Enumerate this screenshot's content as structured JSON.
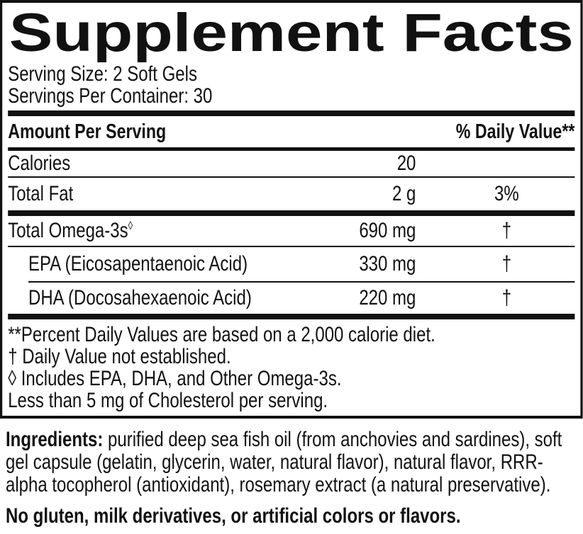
{
  "colors": {
    "ink": "#111111",
    "background": "#ffffff"
  },
  "label": {
    "title": "Supplement Facts",
    "serving_size": "Serving Size: 2 Soft Gels",
    "servings_per_container": "Servings Per Container: 30",
    "header": {
      "amount_per_serving": "Amount Per Serving",
      "daily_value": "% Daily Value**"
    },
    "rows": [
      {
        "name": "Calories",
        "amount": "20",
        "dv": ""
      },
      {
        "name": "Total Fat",
        "amount": "2 g",
        "dv": "3%"
      },
      {
        "name": "Total Omega-3s",
        "mark": "◊",
        "amount": "690 mg",
        "dv": "†"
      },
      {
        "name": "EPA (Eicosapentaenoic Acid)",
        "amount": "330 mg",
        "dv": "†"
      },
      {
        "name": "DHA (Docosahexaenoic Acid)",
        "amount": "220 mg",
        "dv": "†"
      }
    ],
    "footnotes": [
      "**Percent Daily Values are based on a 2,000 calorie diet.",
      "† Daily Value not established.",
      "◊ Includes EPA, DHA, and Other Omega-3s.",
      "Less than 5 mg of Cholesterol per serving."
    ]
  },
  "below": {
    "ingredients_label": "Ingredients:",
    "ingredients_text": " purified deep sea fish oil (from anchovies and sardines), soft gel capsule (gelatin, glycerin, water, natural flavor), natural flavor, RRR-alpha tocopherol (antioxidant), rosemary extract (a natural preservative).",
    "allergen_statement": "No gluten, milk derivatives, or artificial colors or flavors."
  }
}
